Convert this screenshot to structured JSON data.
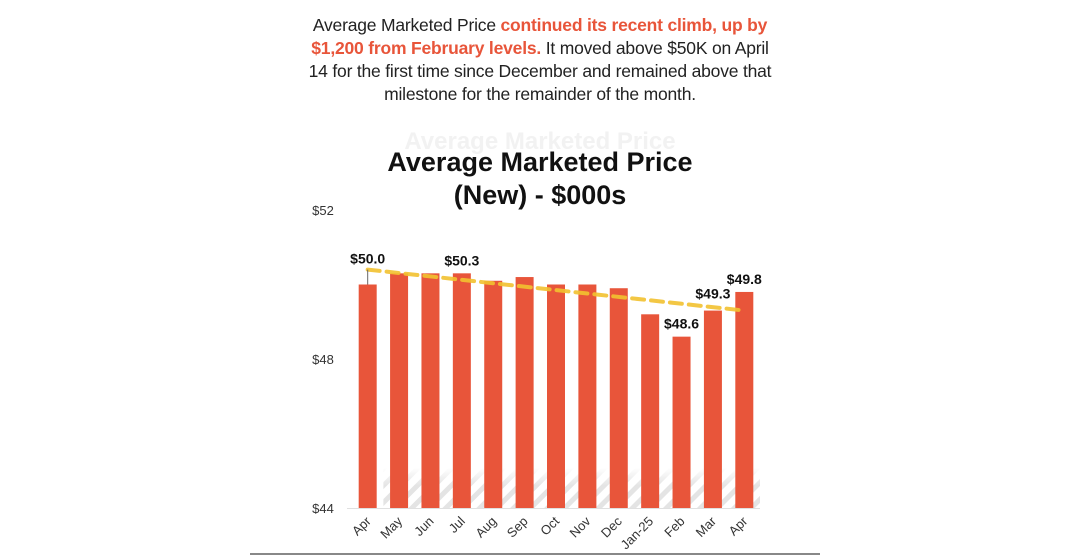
{
  "intro": {
    "part1": "Average Marketed Price ",
    "highlight": "continued its recent climb, up by $1,200 from February levels.",
    "part2": " It moved above $50K on April 14 for the first time since December and remained above that milestone for the remainder of the month."
  },
  "colors": {
    "bar": "#e8553a",
    "trend": "#f2c230",
    "highlight_text": "#e8553a"
  },
  "chart_data": {
    "type": "bar",
    "title": "Average Marketed Price (New) - $000s",
    "title_lines": [
      "Average Marketed Price",
      "(New) - $000s"
    ],
    "xlabel": "",
    "ylabel": "",
    "ylim": [
      44,
      52
    ],
    "yticks": [
      44,
      48,
      52
    ],
    "ytick_labels": [
      "$44",
      "$48",
      "$52"
    ],
    "grid": false,
    "categories": [
      "Apr",
      "May",
      "Jun",
      "Jul",
      "Aug",
      "Sep",
      "Oct",
      "Nov",
      "Dec",
      "Jan-25",
      "Feb",
      "Mar",
      "Apr"
    ],
    "values": [
      50.0,
      50.3,
      50.3,
      50.3,
      50.1,
      50.2,
      50.0,
      50.0,
      49.9,
      49.2,
      48.6,
      49.3,
      49.8
    ],
    "data_labels": [
      {
        "index": 0,
        "text": "$50.0"
      },
      {
        "index": 3,
        "text": "$50.3"
      },
      {
        "index": 10,
        "text": "$48.6"
      },
      {
        "index": 11,
        "text": "$49.3"
      },
      {
        "index": 12,
        "text": "$49.8"
      }
    ],
    "trendline": {
      "type": "linear",
      "style": "dashed",
      "start": 50.4,
      "end": 49.3,
      "from_index": 0,
      "to_index": 12
    }
  }
}
